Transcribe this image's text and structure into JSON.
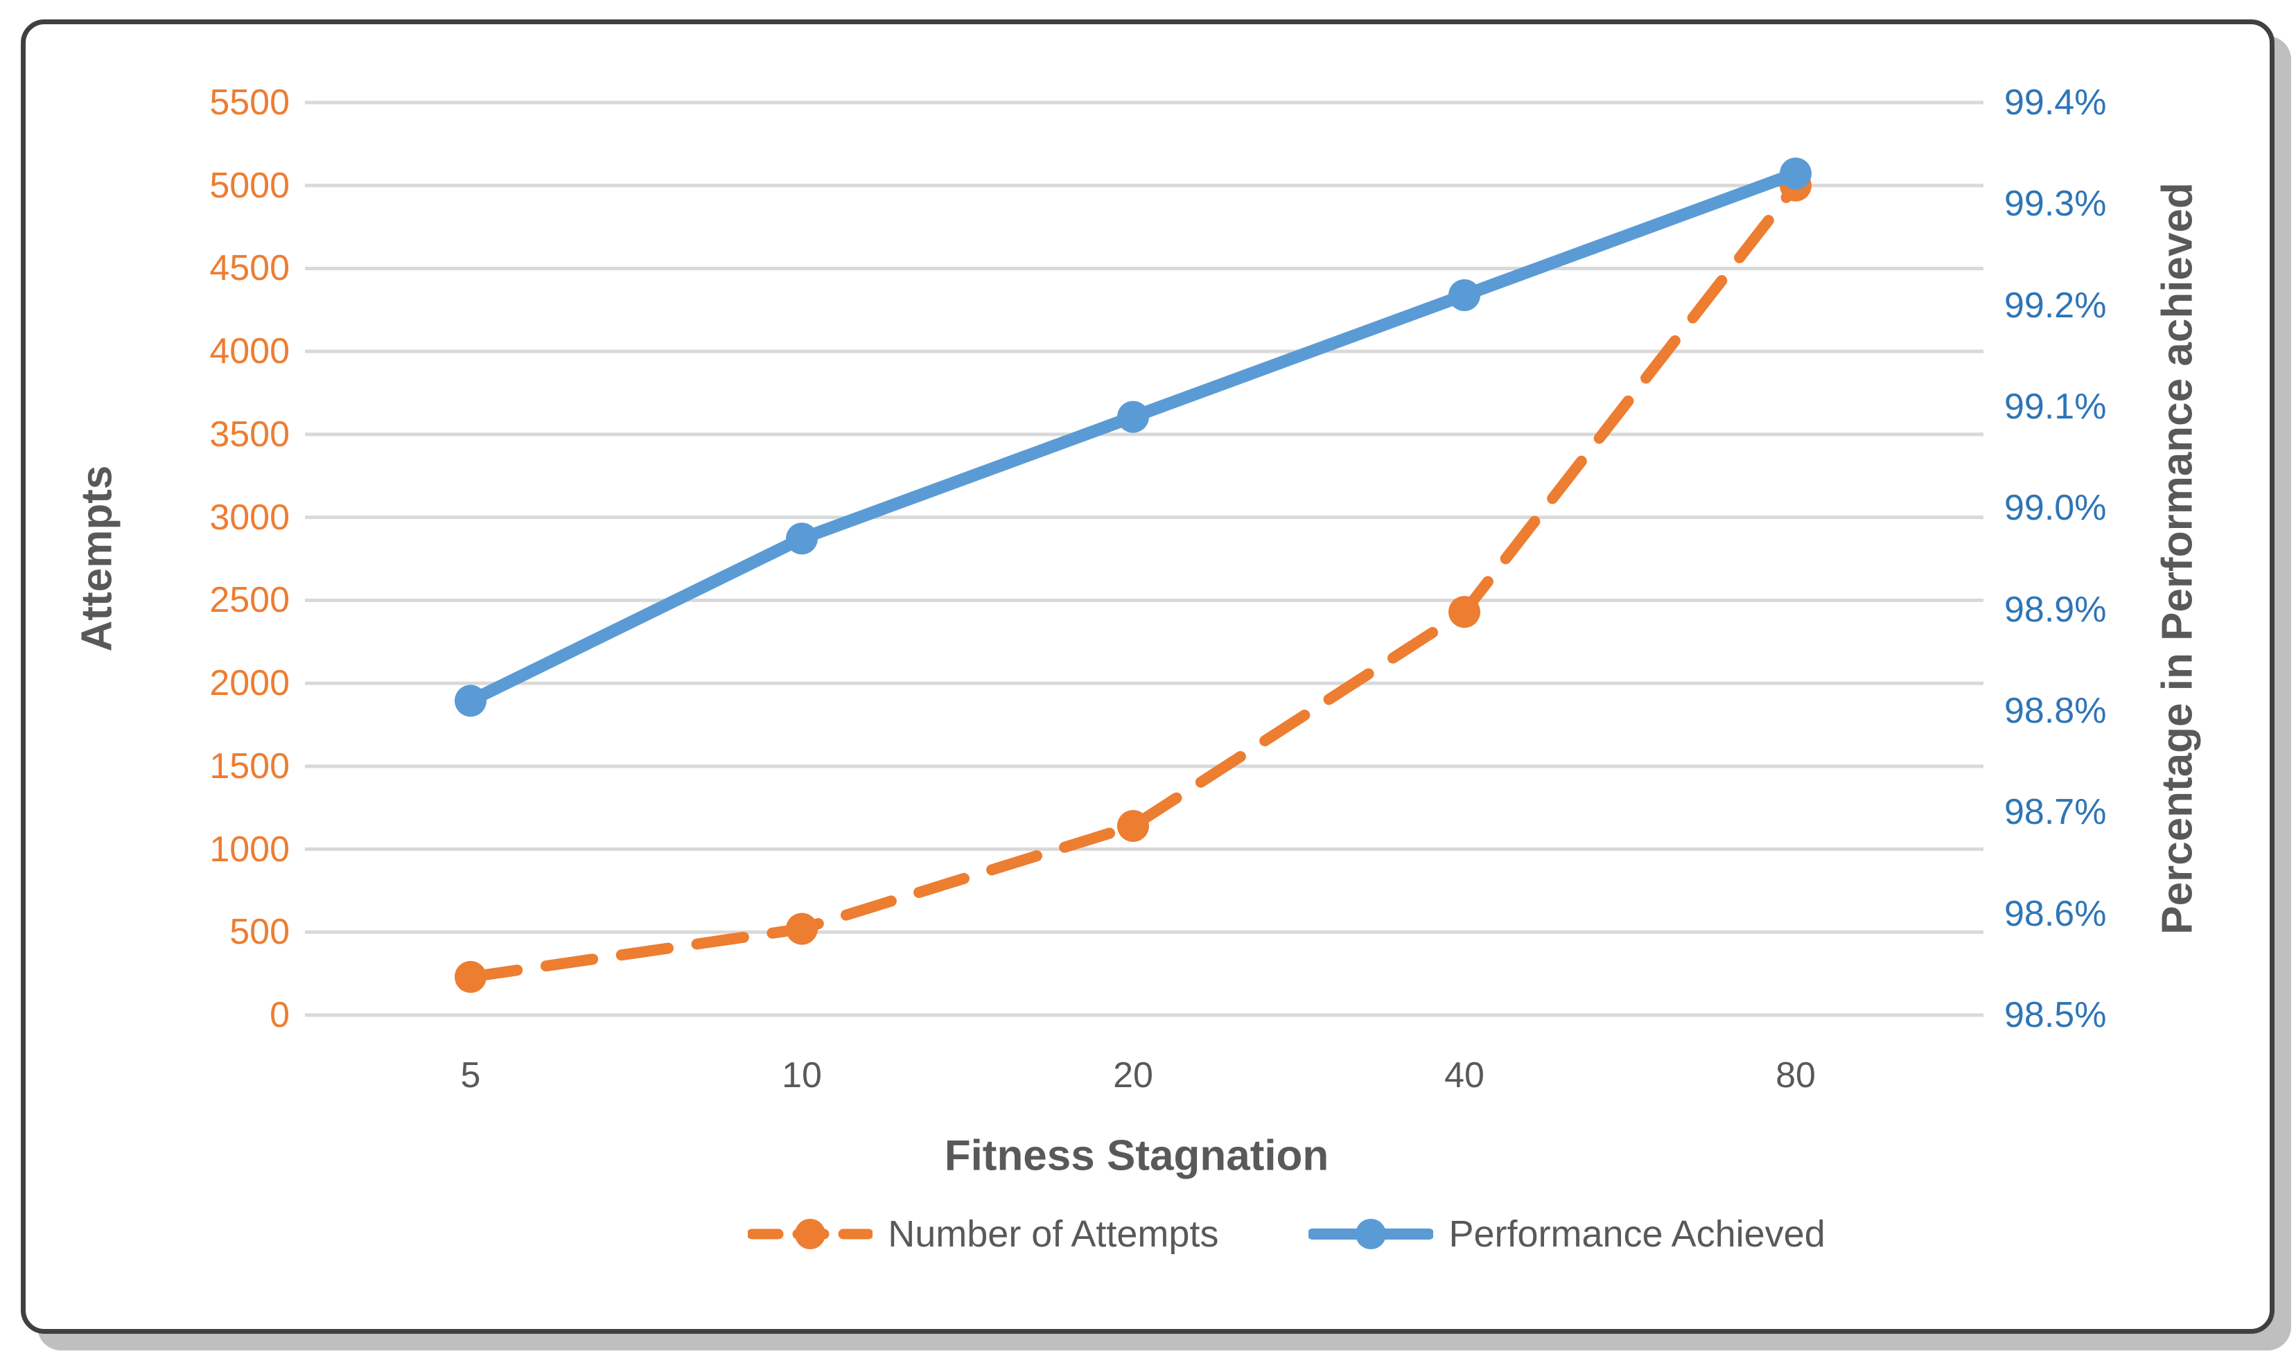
{
  "chart_data": {
    "type": "line",
    "title": "",
    "grid": true,
    "legend_position": "bottom",
    "x_axis": {
      "label": "Fitness Stagnation",
      "categories": [
        5,
        10,
        20,
        40,
        80
      ],
      "tick_labels": [
        "5",
        "10",
        "20",
        "40",
        "80"
      ]
    },
    "y_axis_left": {
      "label": "Attempts",
      "min": 0,
      "max": 5500,
      "step": 500,
      "tick_labels": [
        "0",
        "500",
        "1000",
        "1500",
        "2000",
        "2500",
        "3000",
        "3500",
        "4000",
        "4500",
        "5000",
        "5500"
      ],
      "label_color": "#ED7D31"
    },
    "y_axis_right": {
      "label": "Percentage in Performance achieved",
      "min": 98.5,
      "max": 99.4,
      "step": 0.1,
      "tick_labels": [
        "98.5%",
        "98.6%",
        "98.7%",
        "98.8%",
        "98.9%",
        "99.0%",
        "99.1%",
        "99.2%",
        "99.3%",
        "99.4%"
      ],
      "label_color": "#2E75B6"
    },
    "series": [
      {
        "name": "Number of Attempts",
        "axis": "left",
        "style": "dashed",
        "color": "#ED7D31",
        "values": [
          230,
          520,
          1140,
          2430,
          5000
        ]
      },
      {
        "name": "Performance Achieved",
        "axis": "right",
        "style": "solid",
        "color": "#5B9BD5",
        "values": [
          98.81,
          98.97,
          99.09,
          99.21,
          99.33
        ]
      }
    ]
  },
  "colors": {
    "gridline": "#D9D9D9",
    "frame_border": "#404040",
    "frame_shadow": "#BFBFBF",
    "text_gray": "#595959"
  }
}
